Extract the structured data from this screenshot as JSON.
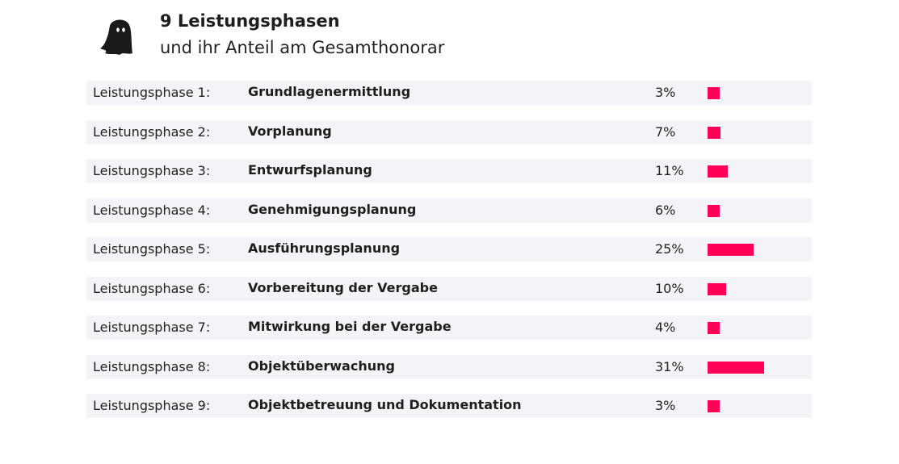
{
  "header": {
    "title": "9 Leistungsphasen",
    "subtitle": "und ihr Anteil am Gesamthonorar",
    "icon": "ghost-icon"
  },
  "colors": {
    "bar": "#ff0055",
    "row_background": "#f4f3f8"
  },
  "chart_data": {
    "type": "bar",
    "orientation": "horizontal",
    "title": "9 Leistungsphasen",
    "subtitle": "und ihr Anteil am Gesamthonorar",
    "labels": [
      "Leistungsphase 1:",
      "Leistungsphase 2:",
      "Leistungsphase 3:",
      "Leistungsphase 4:",
      "Leistungsphase 5:",
      "Leistungsphase 6:",
      "Leistungsphase 7:",
      "Leistungsphase 8:",
      "Leistungsphase 9:"
    ],
    "categories": [
      "Grundlagenermittlung",
      "Vorplanung",
      "Entwurfsplanung",
      "Genehmigungsplanung",
      "Ausführungsplanung",
      "Vorbereitung der Vergabe",
      "Mitwirkung bei der Vergabe",
      "Objektüberwachung",
      "Objektbetreuung und Dokumentation"
    ],
    "values": [
      3,
      7,
      11,
      6,
      25,
      10,
      4,
      31,
      3
    ],
    "value_labels": [
      "3%",
      "7%",
      "11%",
      "6%",
      "25%",
      "10%",
      "4%",
      "31%",
      "3%"
    ],
    "unit": "%",
    "grid": false
  }
}
